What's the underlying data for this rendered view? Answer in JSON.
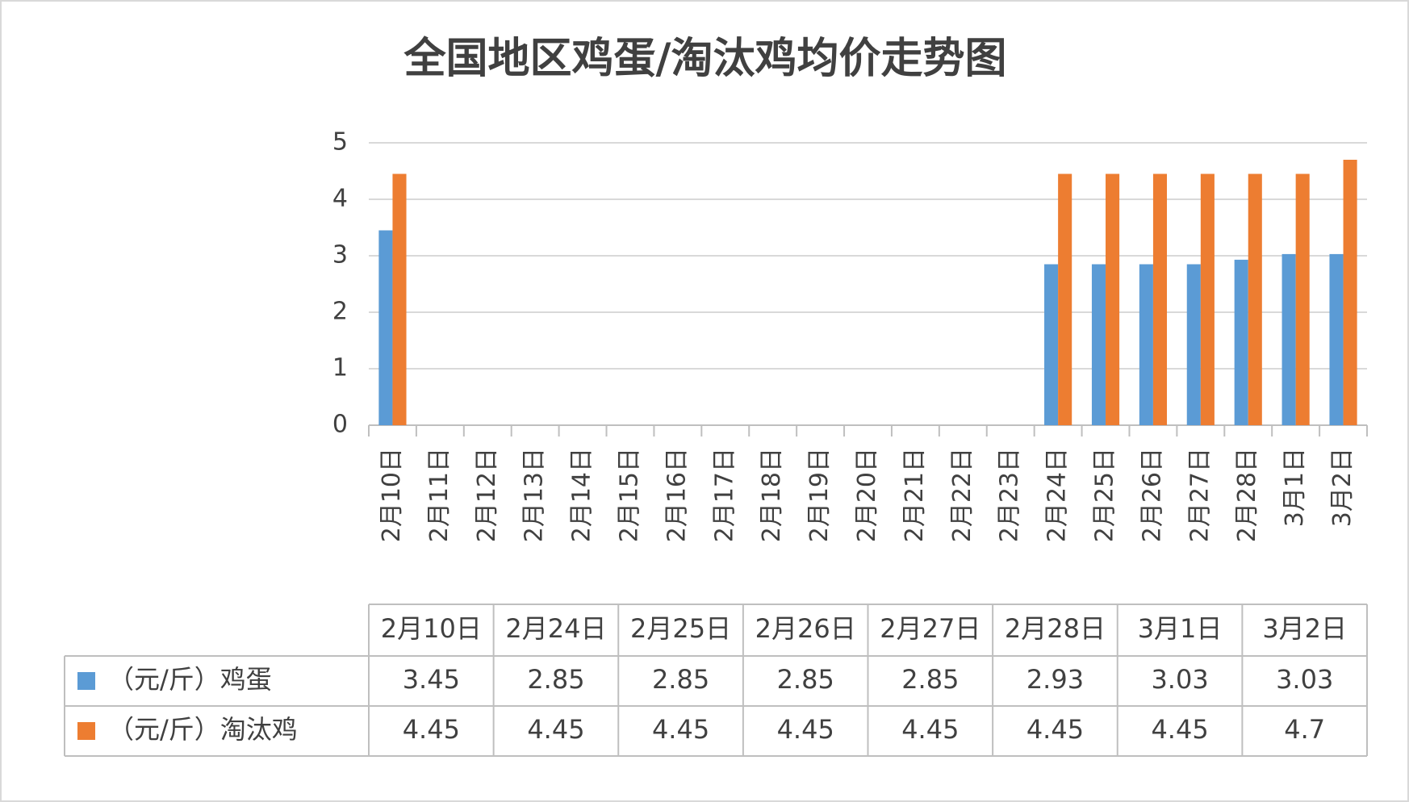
{
  "chart_data": {
    "type": "bar",
    "title": "全国地区鸡蛋/淘汰鸡均价走势图",
    "categories": [
      "2月10日",
      "2月11日",
      "2月12日",
      "2月13日",
      "2月14日",
      "2月15日",
      "2月16日",
      "2月17日",
      "2月18日",
      "2月19日",
      "2月20日",
      "2月21日",
      "2月22日",
      "2月23日",
      "2月24日",
      "2月25日",
      "2月26日",
      "2月27日",
      "2月28日",
      "3月1日",
      "3月2日"
    ],
    "series": [
      {
        "name": "（元/斤）鸡蛋",
        "color": "#5b9bd5",
        "values": [
          3.45,
          null,
          null,
          null,
          null,
          null,
          null,
          null,
          null,
          null,
          null,
          null,
          null,
          null,
          2.85,
          2.85,
          2.85,
          2.85,
          2.93,
          3.03,
          3.03
        ]
      },
      {
        "name": "（元/斤）淘汰鸡",
        "color": "#ed7d31",
        "values": [
          4.45,
          null,
          null,
          null,
          null,
          null,
          null,
          null,
          null,
          null,
          null,
          null,
          null,
          null,
          4.45,
          4.45,
          4.45,
          4.45,
          4.45,
          4.45,
          4.7
        ]
      }
    ],
    "ylim": [
      0,
      5
    ],
    "yticks": [
      0,
      1,
      2,
      3,
      4,
      5
    ],
    "grid": true,
    "data_table": true
  }
}
